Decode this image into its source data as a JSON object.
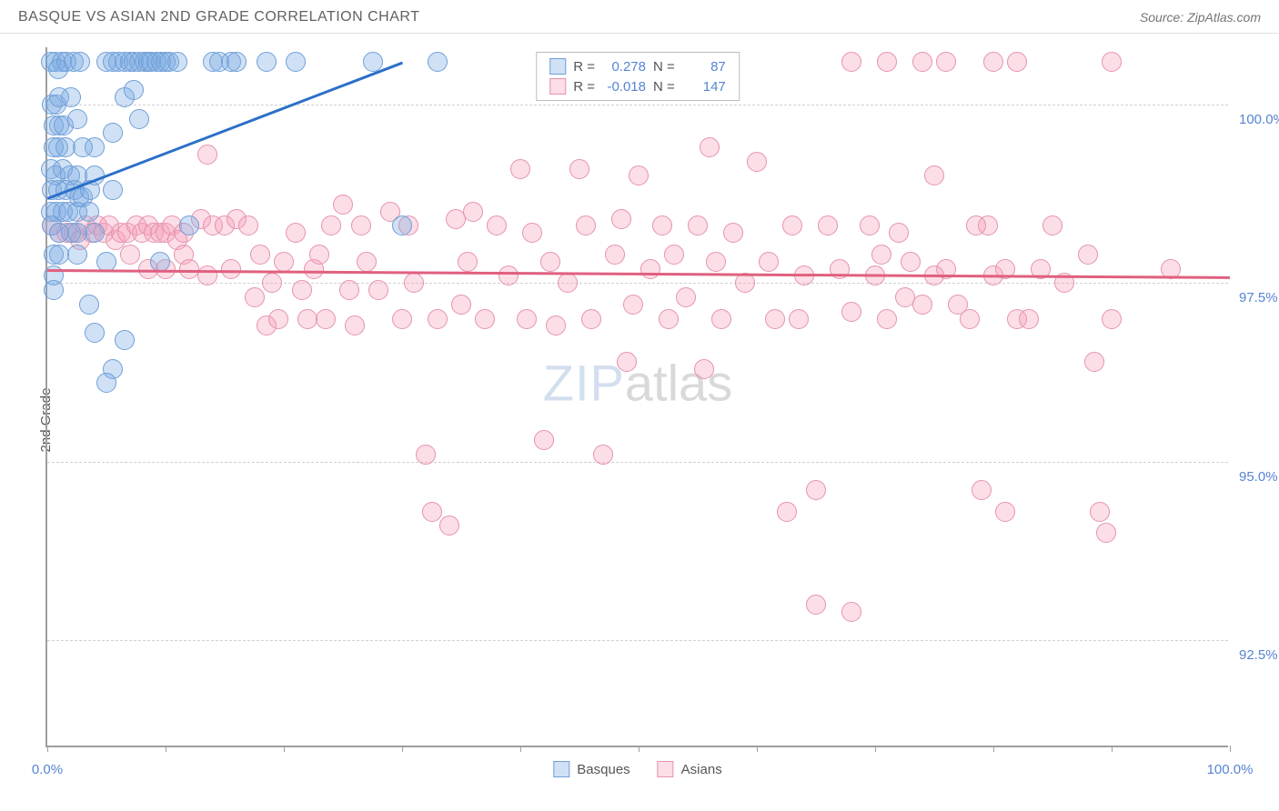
{
  "header": {
    "title": "BASQUE VS ASIAN 2ND GRADE CORRELATION CHART",
    "source": "Source: ZipAtlas.com"
  },
  "chart": {
    "type": "scatter",
    "y_axis_label": "2nd Grade",
    "x_range": [
      0,
      100
    ],
    "y_range": [
      91.0,
      100.8
    ],
    "x_ticks": [
      0,
      10,
      20,
      30,
      40,
      50,
      60,
      70,
      80,
      90,
      100
    ],
    "x_tick_labels_shown": {
      "0": "0.0%",
      "100": "100.0%"
    },
    "y_grid": [
      92.5,
      95.0,
      97.5,
      100.0
    ],
    "y_tick_labels": {
      "92.5": "92.5%",
      "95.0": "95.0%",
      "97.5": "97.5%",
      "100.0": "100.0%"
    },
    "grid_color": "#d0d0d0",
    "axis_color": "#9e9e9e",
    "background": "#ffffff",
    "point_radius": 11,
    "point_border_width": 1.5,
    "series": {
      "basques": {
        "label": "Basques",
        "fill": "rgba(120,170,225,0.35)",
        "stroke": "#6f9fd8",
        "trend_color": "#2b6fc9",
        "R": "0.278",
        "N": "87",
        "trend": {
          "x1": 0,
          "y1": 98.7,
          "x2": 30,
          "y2": 100.6
        },
        "points": [
          [
            0.3,
            100.6
          ],
          [
            0.7,
            100.6
          ],
          [
            1.2,
            100.6
          ],
          [
            0.9,
            100.5
          ],
          [
            1.6,
            100.6
          ],
          [
            2.2,
            100.6
          ],
          [
            2.8,
            100.6
          ],
          [
            5.0,
            100.6
          ],
          [
            5.5,
            100.6
          ],
          [
            6.0,
            100.6
          ],
          [
            6.5,
            100.6
          ],
          [
            7.0,
            100.6
          ],
          [
            7.3,
            100.6
          ],
          [
            7.8,
            100.6
          ],
          [
            8.2,
            100.6
          ],
          [
            8.5,
            100.6
          ],
          [
            8.8,
            100.6
          ],
          [
            9.2,
            100.6
          ],
          [
            9.6,
            100.6
          ],
          [
            10.0,
            100.6
          ],
          [
            10.3,
            100.6
          ],
          [
            11.0,
            100.6
          ],
          [
            14.0,
            100.6
          ],
          [
            14.5,
            100.6
          ],
          [
            15.5,
            100.6
          ],
          [
            16.0,
            100.6
          ],
          [
            18.5,
            100.6
          ],
          [
            21.0,
            100.6
          ],
          [
            27.5,
            100.6
          ],
          [
            33.0,
            100.6
          ],
          [
            0.4,
            100.0
          ],
          [
            0.8,
            100.0
          ],
          [
            1.0,
            100.1
          ],
          [
            2.0,
            100.1
          ],
          [
            6.5,
            100.1
          ],
          [
            7.3,
            100.2
          ],
          [
            0.5,
            99.7
          ],
          [
            1.0,
            99.7
          ],
          [
            1.4,
            99.7
          ],
          [
            2.5,
            99.8
          ],
          [
            5.5,
            99.6
          ],
          [
            7.8,
            99.8
          ],
          [
            0.5,
            99.4
          ],
          [
            0.9,
            99.4
          ],
          [
            1.5,
            99.4
          ],
          [
            3.0,
            99.4
          ],
          [
            4.0,
            99.4
          ],
          [
            0.3,
            99.1
          ],
          [
            0.7,
            99.0
          ],
          [
            1.3,
            99.1
          ],
          [
            1.9,
            99.0
          ],
          [
            2.5,
            99.0
          ],
          [
            4.0,
            99.0
          ],
          [
            0.4,
            98.8
          ],
          [
            0.9,
            98.8
          ],
          [
            1.5,
            98.8
          ],
          [
            2.3,
            98.8
          ],
          [
            2.7,
            98.7
          ],
          [
            3.0,
            98.7
          ],
          [
            3.6,
            98.8
          ],
          [
            5.5,
            98.8
          ],
          [
            0.3,
            98.5
          ],
          [
            0.8,
            98.5
          ],
          [
            1.3,
            98.5
          ],
          [
            1.8,
            98.5
          ],
          [
            2.5,
            98.5
          ],
          [
            3.5,
            98.5
          ],
          [
            0.4,
            98.3
          ],
          [
            1.0,
            98.2
          ],
          [
            2.0,
            98.2
          ],
          [
            2.5,
            98.2
          ],
          [
            4.0,
            98.2
          ],
          [
            12.0,
            98.3
          ],
          [
            30.0,
            98.3
          ],
          [
            0.5,
            97.9
          ],
          [
            1.0,
            97.9
          ],
          [
            2.5,
            97.9
          ],
          [
            5.0,
            97.8
          ],
          [
            9.5,
            97.8
          ],
          [
            0.5,
            97.6
          ],
          [
            0.5,
            97.4
          ],
          [
            3.5,
            97.2
          ],
          [
            4.0,
            96.8
          ],
          [
            6.5,
            96.7
          ],
          [
            5.5,
            96.3
          ],
          [
            5.0,
            96.1
          ]
        ]
      },
      "asians": {
        "label": "Asians",
        "fill": "rgba(245,160,185,0.35)",
        "stroke": "#e593ae",
        "trend_color": "#e0607f",
        "R": "-0.018",
        "N": "147",
        "trend": {
          "x1": 0,
          "y1": 97.7,
          "x2": 100,
          "y2": 97.6
        },
        "points": [
          [
            0.4,
            98.3
          ],
          [
            1.0,
            98.2
          ],
          [
            1.6,
            98.2
          ],
          [
            2.2,
            98.2
          ],
          [
            2.8,
            98.1
          ],
          [
            3.2,
            98.3
          ],
          [
            3.8,
            98.2
          ],
          [
            4.2,
            98.3
          ],
          [
            4.8,
            98.2
          ],
          [
            5.2,
            98.3
          ],
          [
            5.8,
            98.1
          ],
          [
            6.2,
            98.2
          ],
          [
            6.8,
            98.2
          ],
          [
            7.5,
            98.3
          ],
          [
            8.0,
            98.2
          ],
          [
            8.5,
            98.3
          ],
          [
            9.0,
            98.2
          ],
          [
            9.5,
            98.2
          ],
          [
            10.0,
            98.2
          ],
          [
            10.5,
            98.3
          ],
          [
            11.0,
            98.1
          ],
          [
            11.5,
            98.2
          ],
          [
            13.5,
            99.3
          ],
          [
            7.0,
            97.9
          ],
          [
            8.5,
            97.7
          ],
          [
            10.0,
            97.7
          ],
          [
            11.5,
            97.9
          ],
          [
            12.0,
            97.7
          ],
          [
            13.0,
            98.4
          ],
          [
            13.5,
            97.6
          ],
          [
            14.0,
            98.3
          ],
          [
            15.0,
            98.3
          ],
          [
            15.5,
            97.7
          ],
          [
            16.0,
            98.4
          ],
          [
            17.0,
            98.3
          ],
          [
            17.5,
            97.3
          ],
          [
            18.0,
            97.9
          ],
          [
            18.5,
            96.9
          ],
          [
            19.0,
            97.5
          ],
          [
            19.5,
            97.0
          ],
          [
            20.0,
            97.8
          ],
          [
            21.0,
            98.2
          ],
          [
            21.5,
            97.4
          ],
          [
            22.0,
            97.0
          ],
          [
            22.5,
            97.7
          ],
          [
            23.0,
            97.9
          ],
          [
            23.5,
            97.0
          ],
          [
            24.0,
            98.3
          ],
          [
            25.0,
            98.6
          ],
          [
            25.5,
            97.4
          ],
          [
            26.0,
            96.9
          ],
          [
            26.5,
            98.3
          ],
          [
            27.0,
            97.8
          ],
          [
            28.0,
            97.4
          ],
          [
            29.0,
            98.5
          ],
          [
            30.0,
            97.0
          ],
          [
            30.5,
            98.3
          ],
          [
            31.0,
            97.5
          ],
          [
            32.0,
            95.1
          ],
          [
            32.5,
            94.3
          ],
          [
            33.0,
            97.0
          ],
          [
            34.0,
            94.1
          ],
          [
            34.5,
            98.4
          ],
          [
            35.0,
            97.2
          ],
          [
            35.5,
            97.8
          ],
          [
            36.0,
            98.5
          ],
          [
            37.0,
            97.0
          ],
          [
            38.0,
            98.3
          ],
          [
            39.0,
            97.6
          ],
          [
            40.0,
            99.1
          ],
          [
            40.5,
            97.0
          ],
          [
            41.0,
            98.2
          ],
          [
            42.0,
            95.3
          ],
          [
            42.5,
            97.8
          ],
          [
            43.0,
            96.9
          ],
          [
            44.0,
            97.5
          ],
          [
            45.0,
            99.1
          ],
          [
            45.5,
            98.3
          ],
          [
            46.0,
            97.0
          ],
          [
            47.0,
            95.1
          ],
          [
            48.0,
            97.9
          ],
          [
            48.5,
            98.4
          ],
          [
            49.0,
            96.4
          ],
          [
            49.5,
            97.2
          ],
          [
            50.0,
            99.0
          ],
          [
            51.0,
            97.7
          ],
          [
            52.0,
            98.3
          ],
          [
            52.5,
            97.0
          ],
          [
            53.0,
            97.9
          ],
          [
            54.0,
            97.3
          ],
          [
            55.0,
            98.3
          ],
          [
            55.5,
            96.3
          ],
          [
            56.0,
            99.4
          ],
          [
            56.5,
            97.8
          ],
          [
            57.0,
            97.0
          ],
          [
            58.0,
            98.2
          ],
          [
            59.0,
            97.5
          ],
          [
            60.0,
            99.2
          ],
          [
            61.0,
            97.8
          ],
          [
            61.5,
            97.0
          ],
          [
            62.5,
            94.3
          ],
          [
            63.0,
            98.3
          ],
          [
            63.5,
            97.0
          ],
          [
            64.0,
            97.6
          ],
          [
            65.0,
            94.6
          ],
          [
            66.0,
            98.3
          ],
          [
            67.0,
            97.7
          ],
          [
            68.0,
            97.1
          ],
          [
            69.5,
            98.3
          ],
          [
            70.0,
            97.6
          ],
          [
            71.0,
            97.0
          ],
          [
            72.0,
            98.2
          ],
          [
            73.0,
            97.8
          ],
          [
            74.0,
            97.2
          ],
          [
            75.0,
            99.0
          ],
          [
            76.0,
            97.7
          ],
          [
            78.0,
            97.0
          ],
          [
            79.0,
            94.6
          ],
          [
            79.5,
            98.3
          ],
          [
            80.0,
            97.6
          ],
          [
            81.0,
            94.3
          ],
          [
            82.0,
            97.0
          ],
          [
            84.0,
            97.7
          ],
          [
            85.0,
            98.3
          ],
          [
            68.0,
            100.6
          ],
          [
            71.0,
            100.6
          ],
          [
            74.0,
            100.6
          ],
          [
            76.0,
            100.6
          ],
          [
            80.0,
            100.6
          ],
          [
            82.0,
            100.6
          ],
          [
            90.0,
            100.6
          ],
          [
            65.0,
            93.0
          ],
          [
            68.0,
            92.9
          ],
          [
            70.5,
            97.9
          ],
          [
            72.5,
            97.3
          ],
          [
            75.0,
            97.6
          ],
          [
            77.0,
            97.2
          ],
          [
            78.5,
            98.3
          ],
          [
            81.0,
            97.7
          ],
          [
            83.0,
            97.0
          ],
          [
            86.0,
            97.5
          ],
          [
            88.0,
            97.9
          ],
          [
            90.0,
            97.0
          ],
          [
            88.5,
            96.4
          ],
          [
            89.0,
            94.3
          ],
          [
            89.5,
            94.0
          ],
          [
            95.0,
            97.7
          ]
        ]
      }
    },
    "watermark": {
      "part1": "ZIP",
      "part2": "atlas"
    },
    "legend_labels": {
      "R": "R =",
      "N": "N ="
    }
  }
}
